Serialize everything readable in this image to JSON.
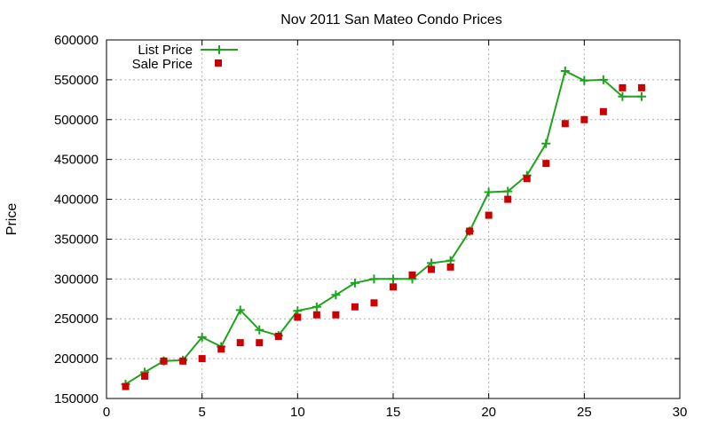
{
  "chart_data": {
    "type": "line",
    "title": "Nov 2011 San Mateo Condo Prices",
    "xlabel": "",
    "ylabel": "Price",
    "xlim": [
      0,
      30
    ],
    "ylim": [
      150000,
      600000
    ],
    "x_ticks": [
      "0",
      "5",
      "10",
      "15",
      "20",
      "25",
      "30"
    ],
    "y_ticks": [
      "150000",
      "200000",
      "250000",
      "300000",
      "350000",
      "400000",
      "450000",
      "500000",
      "550000",
      "600000"
    ],
    "grid": true,
    "legend_position": "top-left",
    "series": [
      {
        "name": "List Price",
        "style": "line-with-plus-markers",
        "color": "#1fa31f",
        "x": [
          1,
          2,
          3,
          4,
          5,
          6,
          7,
          8,
          9,
          10,
          11,
          12,
          13,
          14,
          15,
          16,
          17,
          18,
          19,
          20,
          21,
          22,
          23,
          24,
          25,
          26,
          27,
          28
        ],
        "values": [
          168000,
          183000,
          197000,
          198000,
          227000,
          215000,
          261000,
          236000,
          229000,
          260000,
          265000,
          280000,
          295000,
          300000,
          300000,
          300000,
          320000,
          323000,
          360000,
          409000,
          410000,
          430000,
          470000,
          561000,
          549000,
          550000,
          529000,
          529000
        ]
      },
      {
        "name": "Sale Price",
        "style": "square-markers",
        "color": "#cc0000",
        "x": [
          1,
          2,
          3,
          4,
          5,
          6,
          7,
          8,
          9,
          10,
          11,
          12,
          13,
          14,
          15,
          16,
          17,
          18,
          19,
          20,
          21,
          22,
          23,
          24,
          25,
          26,
          27,
          28
        ],
        "values": [
          165000,
          178000,
          197000,
          197000,
          200000,
          212000,
          220000,
          220000,
          228000,
          252000,
          255000,
          255000,
          265000,
          270000,
          290000,
          305000,
          312000,
          315000,
          360000,
          380000,
          400000,
          426000,
          445000,
          495000,
          500000,
          510000,
          540000,
          540000
        ]
      }
    ]
  }
}
